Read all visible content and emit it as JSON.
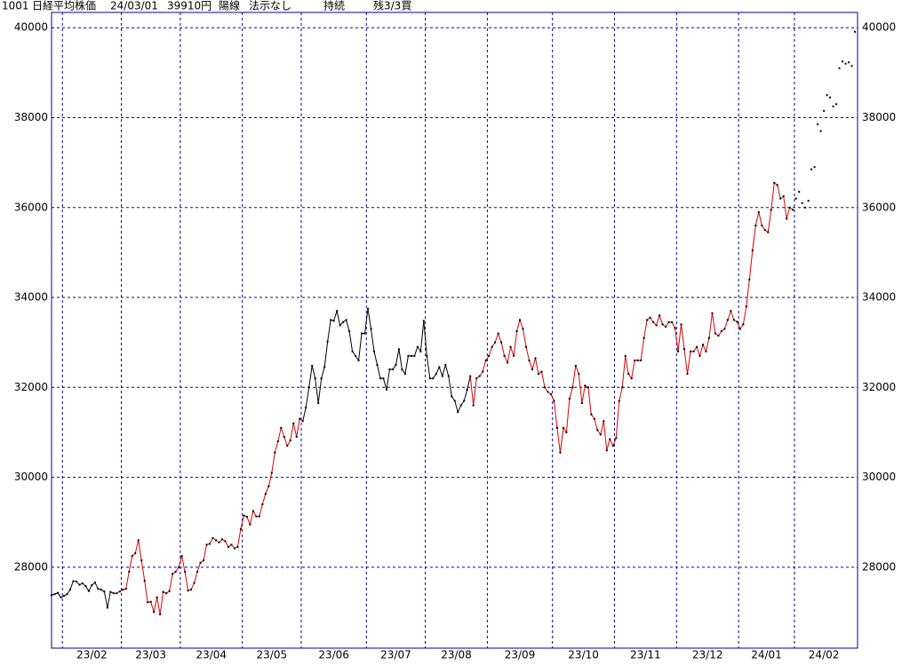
{
  "header": {
    "code": "1001",
    "name": "日経平均株価",
    "date": "24/03/01",
    "price": "39910円",
    "candle": "陽線",
    "signal": "法示なし",
    "state": "持続",
    "position": "残3/3買"
  },
  "chart_data": {
    "type": "line",
    "x": [
      null,
      null,
      null,
      null,
      "23/02",
      "23/02",
      "23/02",
      "23/02",
      "23/02",
      "23/02",
      "23/02",
      "23/02",
      "23/02",
      "23/02",
      "23/02",
      "23/02",
      "23/02",
      "23/02",
      "23/02",
      "23/02",
      "23/02",
      "23/02",
      "23/02",
      "23/03",
      "23/03",
      "23/03",
      "23/03",
      "23/03",
      "23/03",
      "23/03",
      "23/03",
      "23/03",
      "23/03",
      "23/03",
      "23/03",
      "23/03",
      "23/03",
      "23/03",
      "23/03",
      "23/03",
      "23/03",
      "23/03",
      "23/04",
      "23/04",
      "23/04",
      "23/04",
      "23/04",
      "23/04",
      "23/04",
      "23/04",
      "23/04",
      "23/04",
      "23/04",
      "23/04",
      "23/04",
      "23/04",
      "23/04",
      "23/04",
      "23/04",
      "23/04",
      "23/04",
      "23/04",
      "23/05",
      "23/05",
      "23/05",
      "23/05",
      "23/05",
      "23/05",
      "23/05",
      "23/05",
      "23/05",
      "23/05",
      "23/05",
      "23/05",
      "23/05",
      "23/05",
      "23/05",
      "23/05",
      "23/05",
      "23/05",
      "23/05",
      "23/06",
      "23/06",
      "23/06",
      "23/06",
      "23/06",
      "23/06",
      "23/06",
      "23/06",
      "23/06",
      "23/06",
      "23/06",
      "23/06",
      "23/06",
      "23/06",
      "23/06",
      "23/06",
      "23/06",
      "23/06",
      "23/06",
      "23/06",
      "23/06",
      "23/07",
      "23/07",
      "23/07",
      "23/07",
      "23/07",
      "23/07",
      "23/07",
      "23/07",
      "23/07",
      "23/07",
      "23/07",
      "23/07",
      "23/07",
      "23/07",
      "23/07",
      "23/07",
      "23/07",
      "23/07",
      "23/07",
      "23/08",
      "23/08",
      "23/08",
      "23/08",
      "23/08",
      "23/08",
      "23/08",
      "23/08",
      "23/08",
      "23/08",
      "23/08",
      "23/08",
      "23/08",
      "23/08",
      "23/08",
      "23/08",
      "23/08",
      "23/08",
      "23/08",
      "23/08",
      "23/09",
      "23/09",
      "23/09",
      "23/09",
      "23/09",
      "23/09",
      "23/09",
      "23/09",
      "23/09",
      "23/09",
      "23/09",
      "23/09",
      "23/09",
      "23/09",
      "23/09",
      "23/09",
      "23/09",
      "23/09",
      "23/09",
      "23/09",
      "23/09",
      "23/10",
      "23/10",
      "23/10",
      "23/10",
      "23/10",
      "23/10",
      "23/10",
      "23/10",
      "23/10",
      "23/10",
      "23/10",
      "23/10",
      "23/10",
      "23/10",
      "23/10",
      "23/10",
      "23/10",
      "23/10",
      "23/10",
      "23/10",
      "23/11",
      "23/11",
      "23/11",
      "23/11",
      "23/11",
      "23/11",
      "23/11",
      "23/11",
      "23/11",
      "23/11",
      "23/11",
      "23/11",
      "23/11",
      "23/11",
      "23/11",
      "23/11",
      "23/11",
      "23/11",
      "23/11",
      "23/11",
      "23/12",
      "23/12",
      "23/12",
      "23/12",
      "23/12",
      "23/12",
      "23/12",
      "23/12",
      "23/12",
      "23/12",
      "23/12",
      "23/12",
      "23/12",
      "23/12",
      "23/12",
      "23/12",
      "23/12",
      "23/12",
      "23/12",
      "23/12",
      "24/01",
      "24/01",
      "24/01",
      "24/01",
      "24/01",
      "24/01",
      "24/01",
      "24/01",
      "24/01",
      "24/01",
      "24/01",
      "24/01",
      "24/01",
      "24/01",
      "24/01",
      "24/01",
      "24/01",
      "24/01",
      "24/02",
      "24/02",
      "24/02",
      "24/02",
      "24/02",
      "24/02",
      "24/02",
      "24/02",
      "24/02",
      "24/02",
      "24/02",
      "24/02",
      "24/02",
      "24/02",
      "24/02",
      "24/02",
      "24/02",
      "24/02",
      "24/02",
      null
    ],
    "values": [
      27380,
      27400,
      27430,
      27330,
      27360,
      27400,
      27500,
      27690,
      27680,
      27610,
      27640,
      27580,
      27470,
      27600,
      27660,
      27520,
      27500,
      27460,
      27100,
      27450,
      27420,
      27420,
      27460,
      27500,
      27520,
      27900,
      28250,
      28310,
      28600,
      28150,
      27700,
      27220,
      27230,
      27000,
      27330,
      26950,
      27450,
      27420,
      27470,
      27850,
      27900,
      28000,
      28250,
      27900,
      27480,
      27500,
      27650,
      27900,
      28100,
      28150,
      28500,
      28520,
      28650,
      28600,
      28550,
      28620,
      28580,
      28450,
      28500,
      28420,
      28450,
      28850,
      29150,
      29120,
      28950,
      29250,
      29130,
      29130,
      29400,
      29630,
      29800,
      30100,
      30550,
      30800,
      31100,
      30900,
      30700,
      30820,
      31200,
      30900,
      31300,
      31250,
      31550,
      32000,
      32480,
      32200,
      31650,
      32200,
      32450,
      33020,
      33500,
      33480,
      33700,
      33380,
      33450,
      33500,
      33250,
      32800,
      32700,
      32600,
      33200,
      33200,
      33750,
      33300,
      32800,
      32500,
      32200,
      32200,
      31950,
      32400,
      32400,
      32500,
      32850,
      32400,
      32300,
      32700,
      32700,
      32700,
      32900,
      32800,
      33480,
      32700,
      32200,
      32200,
      32300,
      32450,
      32250,
      32500,
      32250,
      31800,
      31700,
      31450,
      31600,
      31700,
      31950,
      32250,
      31600,
      32200,
      32250,
      32350,
      32600,
      32700,
      32900,
      33000,
      33200,
      33000,
      32700,
      32550,
      32900,
      32700,
      33250,
      33500,
      33300,
      32900,
      32600,
      32400,
      32650,
      32300,
      32350,
      32000,
      31900,
      31850,
      31700,
      31100,
      30550,
      31100,
      31000,
      31750,
      32000,
      32480,
      32300,
      31650,
      32040,
      32000,
      31400,
      31300,
      31050,
      30950,
      31250,
      30600,
      30850,
      30700,
      30870,
      31700,
      32000,
      32700,
      32300,
      32200,
      32600,
      32600,
      32600,
      33100,
      33500,
      33550,
      33450,
      33380,
      33600,
      33400,
      33350,
      33450,
      33450,
      33320,
      32800,
      33400,
      32850,
      32300,
      32800,
      32800,
      32900,
      32700,
      32950,
      32800,
      33100,
      33650,
      33200,
      33150,
      33250,
      33300,
      33500,
      33700,
      33500,
      33460,
      33300,
      33400,
      33800,
      34400,
      35050,
      35600,
      35900,
      35600,
      35500,
      35450,
      35950,
      36550,
      36500,
      36200,
      36250,
      35750,
      36000,
      35950,
      36200,
      36350,
      36100,
      36000,
      36150,
      36850,
      36900,
      37850,
      37700,
      38150,
      38500,
      38450,
      38250,
      38300,
      39100,
      39250,
      39200,
      39230,
      39150,
      39910
    ],
    "colors": [
      "#000000",
      "#000000",
      "#000000",
      "#000000",
      "#000000",
      "#000000",
      "#000000",
      "#000000",
      "#000000",
      "#000000",
      "#000000",
      "#000000",
      "#000000",
      "#000000",
      "#000000",
      "#000000",
      "#000000",
      "#000000",
      "#000000",
      "#000000",
      "#000000",
      "#e00000",
      "#e00000",
      "#e00000",
      "#e00000",
      "#e00000",
      "#e00000",
      "#e00000",
      "#e00000",
      "#e00000",
      "#e00000",
      "#e00000",
      "#e00000",
      "#e00000",
      "#e00000",
      "#e00000",
      "#e00000",
      "#e00000",
      "#e00000",
      "#e00000",
      "#e00000",
      "#e00000",
      "#e00000",
      "#e00000",
      "#e00000",
      "#e00000",
      "#e00000",
      "#e00000",
      "#e00000",
      "#e00000",
      "#e00000",
      "#e00000",
      "#e00000",
      "#e00000",
      "#e00000",
      "#e00000",
      "#e00000",
      "#e00000",
      "#e00000",
      "#e00000",
      "#e00000",
      "#e00000",
      "#e00000",
      "#e00000",
      "#e00000",
      "#e00000",
      "#e00000",
      "#e00000",
      "#e00000",
      "#e00000",
      "#e00000",
      "#e00000",
      "#e00000",
      "#e00000",
      "#e00000",
      "#e00000",
      "#e00000",
      "#e00000",
      "#e00000",
      "#e00000",
      "#e00000",
      "#e00000",
      "#000000",
      "#000000",
      "#000000",
      "#000000",
      "#000000",
      "#000000",
      "#000000",
      "#000000",
      "#000000",
      "#000000",
      "#000000",
      "#000000",
      "#000000",
      "#000000",
      "#000000",
      "#000000",
      "#000000",
      "#000000",
      "#000000",
      "#000000",
      "#000000",
      "#000000",
      "#000000",
      "#000000",
      "#000000",
      "#000000",
      "#000000",
      "#000000",
      "#000000",
      "#000000",
      "#000000",
      "#000000",
      "#000000",
      "#000000",
      "#000000",
      "#000000",
      "#000000",
      "#000000",
      "#000000",
      "#000000",
      "#000000",
      "#000000",
      "#000000",
      "#000000",
      "#000000",
      "#000000",
      "#000000",
      "#000000",
      "#000000",
      "#000000",
      "#000000",
      "#000000",
      "#000000",
      "#000000",
      "#e00000",
      "#e00000",
      "#e00000",
      "#e00000",
      "#e00000",
      "#e00000",
      "#e00000",
      "#e00000",
      "#e00000",
      "#e00000",
      "#e00000",
      "#e00000",
      "#e00000",
      "#e00000",
      "#e00000",
      "#e00000",
      "#e00000",
      "#e00000",
      "#e00000",
      "#e00000",
      "#e00000",
      "#e00000",
      "#e00000",
      "#e00000",
      "#e00000",
      "#e00000",
      "#e00000",
      "#e00000",
      "#e00000",
      "#e00000",
      "#e00000",
      "#e00000",
      "#e00000",
      "#e00000",
      "#e00000",
      "#e00000",
      "#e00000",
      "#e00000",
      "#e00000",
      "#e00000",
      "#e00000",
      "#e00000",
      "#e00000",
      "#e00000",
      "#e00000",
      "#e00000",
      "#e00000",
      "#e00000",
      "#e00000",
      "#e00000",
      "#e00000",
      "#e00000",
      "#e00000",
      "#e00000",
      "#e00000",
      "#e00000",
      "#e00000",
      "#e00000",
      "#e00000",
      "#e00000",
      "#e00000",
      "#e00000",
      "#e00000",
      "#e00000",
      "#e00000",
      "#e00000",
      "#e00000",
      "#e00000",
      "#e00000",
      "#e00000",
      "#e00000",
      "#e00000",
      "#e00000",
      "#e00000",
      "#e00000",
      "#e00000",
      "#e00000",
      "#e00000",
      "#e00000",
      "#e00000",
      "#e00000",
      "#e00000",
      "#e00000",
      "#e00000",
      "#e00000",
      "#e00000",
      "#e00000",
      "#e00000",
      "#e00000",
      "#e00000",
      "#e00000",
      "#e00000",
      "#e00000",
      "#e00000",
      "#e00000",
      "#e00000",
      "#e00000",
      "#e00000",
      "#e00000",
      "#e00000",
      "#e00000",
      "#e00000",
      "#e00000",
      "#e00000"
    ],
    "ylim": [
      26200,
      40340
    ],
    "yticks": [
      28000,
      30000,
      32000,
      34000,
      36000,
      38000,
      40000
    ],
    "grid": true,
    "grid_color": "#0000a0",
    "frame_color": "#0000a0"
  }
}
